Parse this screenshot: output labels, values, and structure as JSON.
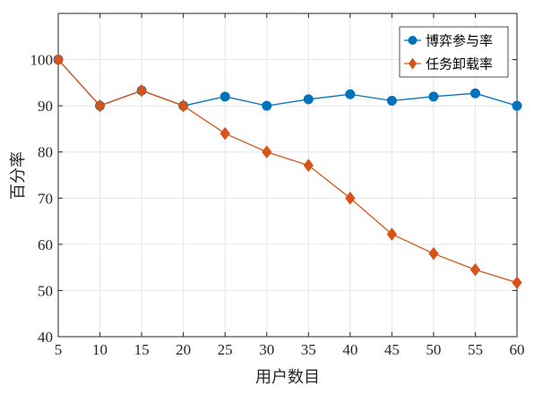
{
  "chart_data": {
    "type": "line",
    "title": "",
    "xlabel": "用户数目",
    "ylabel": "百分率",
    "x": [
      5,
      10,
      15,
      20,
      25,
      30,
      35,
      40,
      45,
      50,
      55,
      60
    ],
    "xlim": [
      5,
      60
    ],
    "ylim": [
      40,
      110
    ],
    "xticks": [
      5,
      10,
      15,
      20,
      25,
      30,
      35,
      40,
      45,
      50,
      55,
      60
    ],
    "yticks": [
      40,
      50,
      60,
      70,
      80,
      90,
      100
    ],
    "grid": true,
    "legend_position": "top-right",
    "series": [
      {
        "name": "博弈参与率",
        "color": "#0072BD",
        "marker": "circle",
        "values": [
          100,
          90,
          93.3,
          90,
          92,
          90,
          91.4,
          92.5,
          91.1,
          92,
          92.7,
          90
        ]
      },
      {
        "name": "任务卸载率",
        "color": "#D95319",
        "marker": "diamond",
        "values": [
          100,
          90,
          93.3,
          90,
          84,
          80,
          77.1,
          70,
          62.2,
          58,
          54.5,
          51.7
        ]
      }
    ]
  }
}
